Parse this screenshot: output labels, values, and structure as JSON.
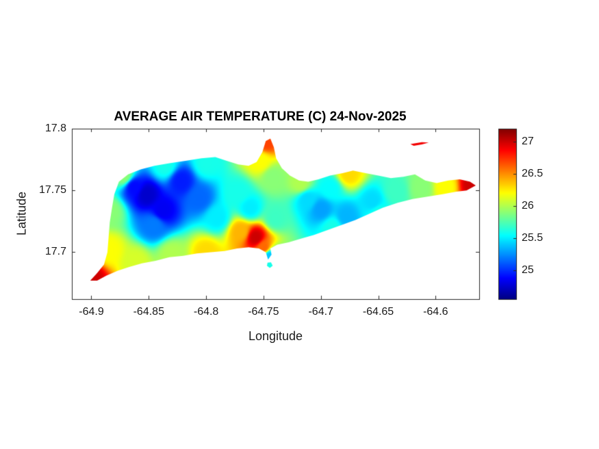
{
  "figure": {
    "title": "AVERAGE AIR TEMPERATURE (C) 24-Nov-2025",
    "xlabel": "Longitude",
    "ylabel": "Latitude"
  },
  "chart_data": {
    "type": "heatmap",
    "title": "AVERAGE AIR TEMPERATURE (C) 24-Nov-2025",
    "xlabel": "Longitude",
    "ylabel": "Latitude",
    "xlim": [
      -64.917,
      -64.562
    ],
    "ylim": [
      17.662,
      17.8
    ],
    "xticks": [
      -64.9,
      -64.85,
      -64.8,
      -64.75,
      -64.7,
      -64.65,
      -64.6
    ],
    "yticks": [
      17.7,
      17.75,
      17.8
    ],
    "grid": false,
    "colormap": "jet",
    "colorbar": {
      "position": "right",
      "range": [
        24.55,
        27.2
      ],
      "ticks": [
        25,
        25.5,
        26,
        26.5,
        27
      ]
    },
    "outline": [
      [
        -64.901,
        17.677
      ],
      [
        -64.895,
        17.683
      ],
      [
        -64.889,
        17.69
      ],
      [
        -64.886,
        17.7
      ],
      [
        -64.885,
        17.712
      ],
      [
        -64.884,
        17.724
      ],
      [
        -64.882,
        17.736
      ],
      [
        -64.88,
        17.747
      ],
      [
        -64.876,
        17.757
      ],
      [
        -64.868,
        17.763
      ],
      [
        -64.857,
        17.767
      ],
      [
        -64.845,
        17.77
      ],
      [
        -64.832,
        17.772
      ],
      [
        -64.818,
        17.774
      ],
      [
        -64.804,
        17.776
      ],
      [
        -64.792,
        17.777
      ],
      [
        -64.782,
        17.774
      ],
      [
        -64.772,
        17.771
      ],
      [
        -64.763,
        17.77
      ],
      [
        -64.756,
        17.773
      ],
      [
        -64.751,
        17.781
      ],
      [
        -64.748,
        17.79
      ],
      [
        -64.744,
        17.792
      ],
      [
        -64.741,
        17.785
      ],
      [
        -64.739,
        17.776
      ],
      [
        -64.734,
        17.768
      ],
      [
        -64.727,
        17.762
      ],
      [
        -64.719,
        17.758
      ],
      [
        -64.711,
        17.757
      ],
      [
        -64.702,
        17.759
      ],
      [
        -64.692,
        17.762
      ],
      [
        -64.681,
        17.764
      ],
      [
        -64.672,
        17.766
      ],
      [
        -64.661,
        17.764
      ],
      [
        -64.65,
        17.762
      ],
      [
        -64.639,
        17.76
      ],
      [
        -64.628,
        17.761
      ],
      [
        -64.618,
        17.763
      ],
      [
        -64.609,
        17.758
      ],
      [
        -64.599,
        17.756
      ],
      [
        -64.589,
        17.758
      ],
      [
        -64.579,
        17.759
      ],
      [
        -64.57,
        17.757
      ],
      [
        -64.565,
        17.754
      ],
      [
        -64.573,
        17.75
      ],
      [
        -64.582,
        17.749
      ],
      [
        -64.594,
        17.747
      ],
      [
        -64.607,
        17.745
      ],
      [
        -64.62,
        17.743
      ],
      [
        -64.633,
        17.74
      ],
      [
        -64.646,
        17.736
      ],
      [
        -64.658,
        17.731
      ],
      [
        -64.67,
        17.726
      ],
      [
        -64.682,
        17.722
      ],
      [
        -64.694,
        17.718
      ],
      [
        -64.706,
        17.714
      ],
      [
        -64.717,
        17.711
      ],
      [
        -64.728,
        17.708
      ],
      [
        -64.738,
        17.706
      ],
      [
        -64.744,
        17.703
      ],
      [
        -64.743,
        17.698
      ],
      [
        -64.746,
        17.694
      ],
      [
        -64.748,
        17.7
      ],
      [
        -64.754,
        17.703
      ],
      [
        -64.763,
        17.704
      ],
      [
        -64.773,
        17.703
      ],
      [
        -64.784,
        17.701
      ],
      [
        -64.796,
        17.7
      ],
      [
        -64.808,
        17.699
      ],
      [
        -64.82,
        17.697
      ],
      [
        -64.832,
        17.696
      ],
      [
        -64.844,
        17.693
      ],
      [
        -64.856,
        17.691
      ],
      [
        -64.867,
        17.688
      ],
      [
        -64.877,
        17.685
      ],
      [
        -64.887,
        17.681
      ],
      [
        -64.895,
        17.677
      ],
      [
        -64.901,
        17.677
      ]
    ],
    "islets": [
      {
        "outline": [
          [
            -64.622,
            17.7875
          ],
          [
            -64.612,
            17.789
          ],
          [
            -64.606,
            17.7888
          ],
          [
            -64.612,
            17.7872
          ],
          [
            -64.619,
            17.7862
          ]
        ],
        "temp": 26.9
      },
      {
        "outline": [
          [
            -64.7465,
            17.6915
          ],
          [
            -64.7435,
            17.6918
          ],
          [
            -64.742,
            17.689
          ],
          [
            -64.7445,
            17.6872
          ],
          [
            -64.747,
            17.689
          ]
        ],
        "temp": 25.6
      }
    ],
    "temperature_points": [
      [
        -64.852,
        17.747,
        24.75
      ],
      [
        -64.838,
        17.734,
        24.85
      ],
      [
        -64.863,
        17.753,
        24.9
      ],
      [
        -64.822,
        17.758,
        24.95
      ],
      [
        -64.846,
        17.722,
        25.2
      ],
      [
        -64.806,
        17.744,
        25.15
      ],
      [
        -64.884,
        17.733,
        25.9
      ],
      [
        -64.872,
        17.762,
        25.9
      ],
      [
        -64.836,
        17.77,
        25.6
      ],
      [
        -64.8,
        17.772,
        25.6
      ],
      [
        -64.885,
        17.702,
        26.2
      ],
      [
        -64.862,
        17.692,
        26.1
      ],
      [
        -64.83,
        17.698,
        26.0
      ],
      [
        -64.8,
        17.7,
        26.3
      ],
      [
        -64.9,
        17.679,
        27.0
      ],
      [
        -64.79,
        17.728,
        25.5
      ],
      [
        -64.762,
        17.736,
        25.5
      ],
      [
        -64.772,
        17.748,
        25.6
      ],
      [
        -64.757,
        17.712,
        27.0
      ],
      [
        -64.75,
        17.704,
        26.6
      ],
      [
        -64.77,
        17.717,
        26.4
      ],
      [
        -64.74,
        17.728,
        25.7
      ],
      [
        -64.745,
        17.697,
        25.4
      ],
      [
        -64.748,
        17.79,
        26.7
      ],
      [
        -64.753,
        17.774,
        26.2
      ],
      [
        -64.742,
        17.761,
        25.9
      ],
      [
        -64.718,
        17.756,
        26.0
      ],
      [
        -64.676,
        17.764,
        26.3
      ],
      [
        -64.7,
        17.735,
        25.3
      ],
      [
        -64.678,
        17.729,
        25.35
      ],
      [
        -64.655,
        17.741,
        25.45
      ],
      [
        -64.712,
        17.743,
        25.45
      ],
      [
        -64.692,
        17.752,
        25.55
      ],
      [
        -64.69,
        17.72,
        25.6
      ],
      [
        -64.65,
        17.732,
        25.6
      ],
      [
        -64.635,
        17.749,
        25.7
      ],
      [
        -64.612,
        17.752,
        25.9
      ],
      [
        -64.592,
        17.753,
        26.2
      ],
      [
        -64.568,
        17.755,
        27.0
      ]
    ]
  }
}
